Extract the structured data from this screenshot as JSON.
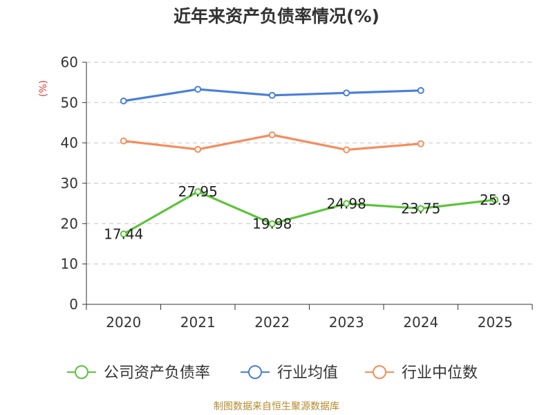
{
  "chart_data": {
    "type": "line",
    "title": "近年来资产负债率情况(%)",
    "ylabel": "(%)",
    "xlabel": "",
    "categories": [
      "2020",
      "2021",
      "2022",
      "2023",
      "2024",
      "2025"
    ],
    "ylim": [
      0,
      60
    ],
    "yticks": [
      "0",
      "10",
      "20",
      "30",
      "40",
      "50",
      "60"
    ],
    "grid": true,
    "legend_position": "bottom",
    "series": [
      {
        "name": "公司资产负债率",
        "color": "#5cc33a",
        "values": [
          17.44,
          27.95,
          19.98,
          24.98,
          23.75,
          25.9
        ],
        "labels": [
          "17.44",
          "27.95",
          "19.98",
          "24.98",
          "23.75",
          "25.9"
        ]
      },
      {
        "name": "行业均值",
        "color": "#4a7fd9",
        "values": [
          50.4,
          53.3,
          51.8,
          52.4,
          53.0,
          null
        ]
      },
      {
        "name": "行业中位数",
        "color": "#f58d5c",
        "values": [
          40.5,
          38.4,
          42.0,
          38.3,
          39.8,
          null
        ]
      }
    ]
  },
  "footer": {
    "source": "制图数据来自恒生聚源数据库"
  }
}
